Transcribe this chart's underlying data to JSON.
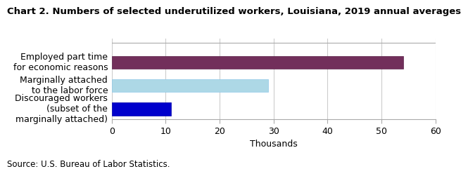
{
  "title": "Chart 2. Numbers of selected underutilized workers, Louisiana, 2019 annual averages",
  "categories": [
    "Discouraged workers\n(subset of the\nmarginally attached)",
    "Marginally attached\nto the labor force",
    "Employed part time\nfor economic reasons"
  ],
  "values": [
    11,
    29,
    54
  ],
  "bar_colors": [
    "#0000cc",
    "#add8e6",
    "#722f5b"
  ],
  "bar_edgecolors": [
    "#0000aa",
    "#90c8e8",
    "#5a2048"
  ],
  "xlabel": "Thousands",
  "xlim": [
    0,
    60
  ],
  "xticks": [
    0,
    10,
    20,
    30,
    40,
    50,
    60
  ],
  "source": "Source: U.S. Bureau of Labor Statistics.",
  "title_fontsize": 9.5,
  "tick_fontsize": 9,
  "label_fontsize": 9,
  "source_fontsize": 8.5,
  "bar_height": 0.55,
  "background_color": "#ffffff",
  "grid_color": "#cccccc",
  "spine_color": "#aaaaaa"
}
